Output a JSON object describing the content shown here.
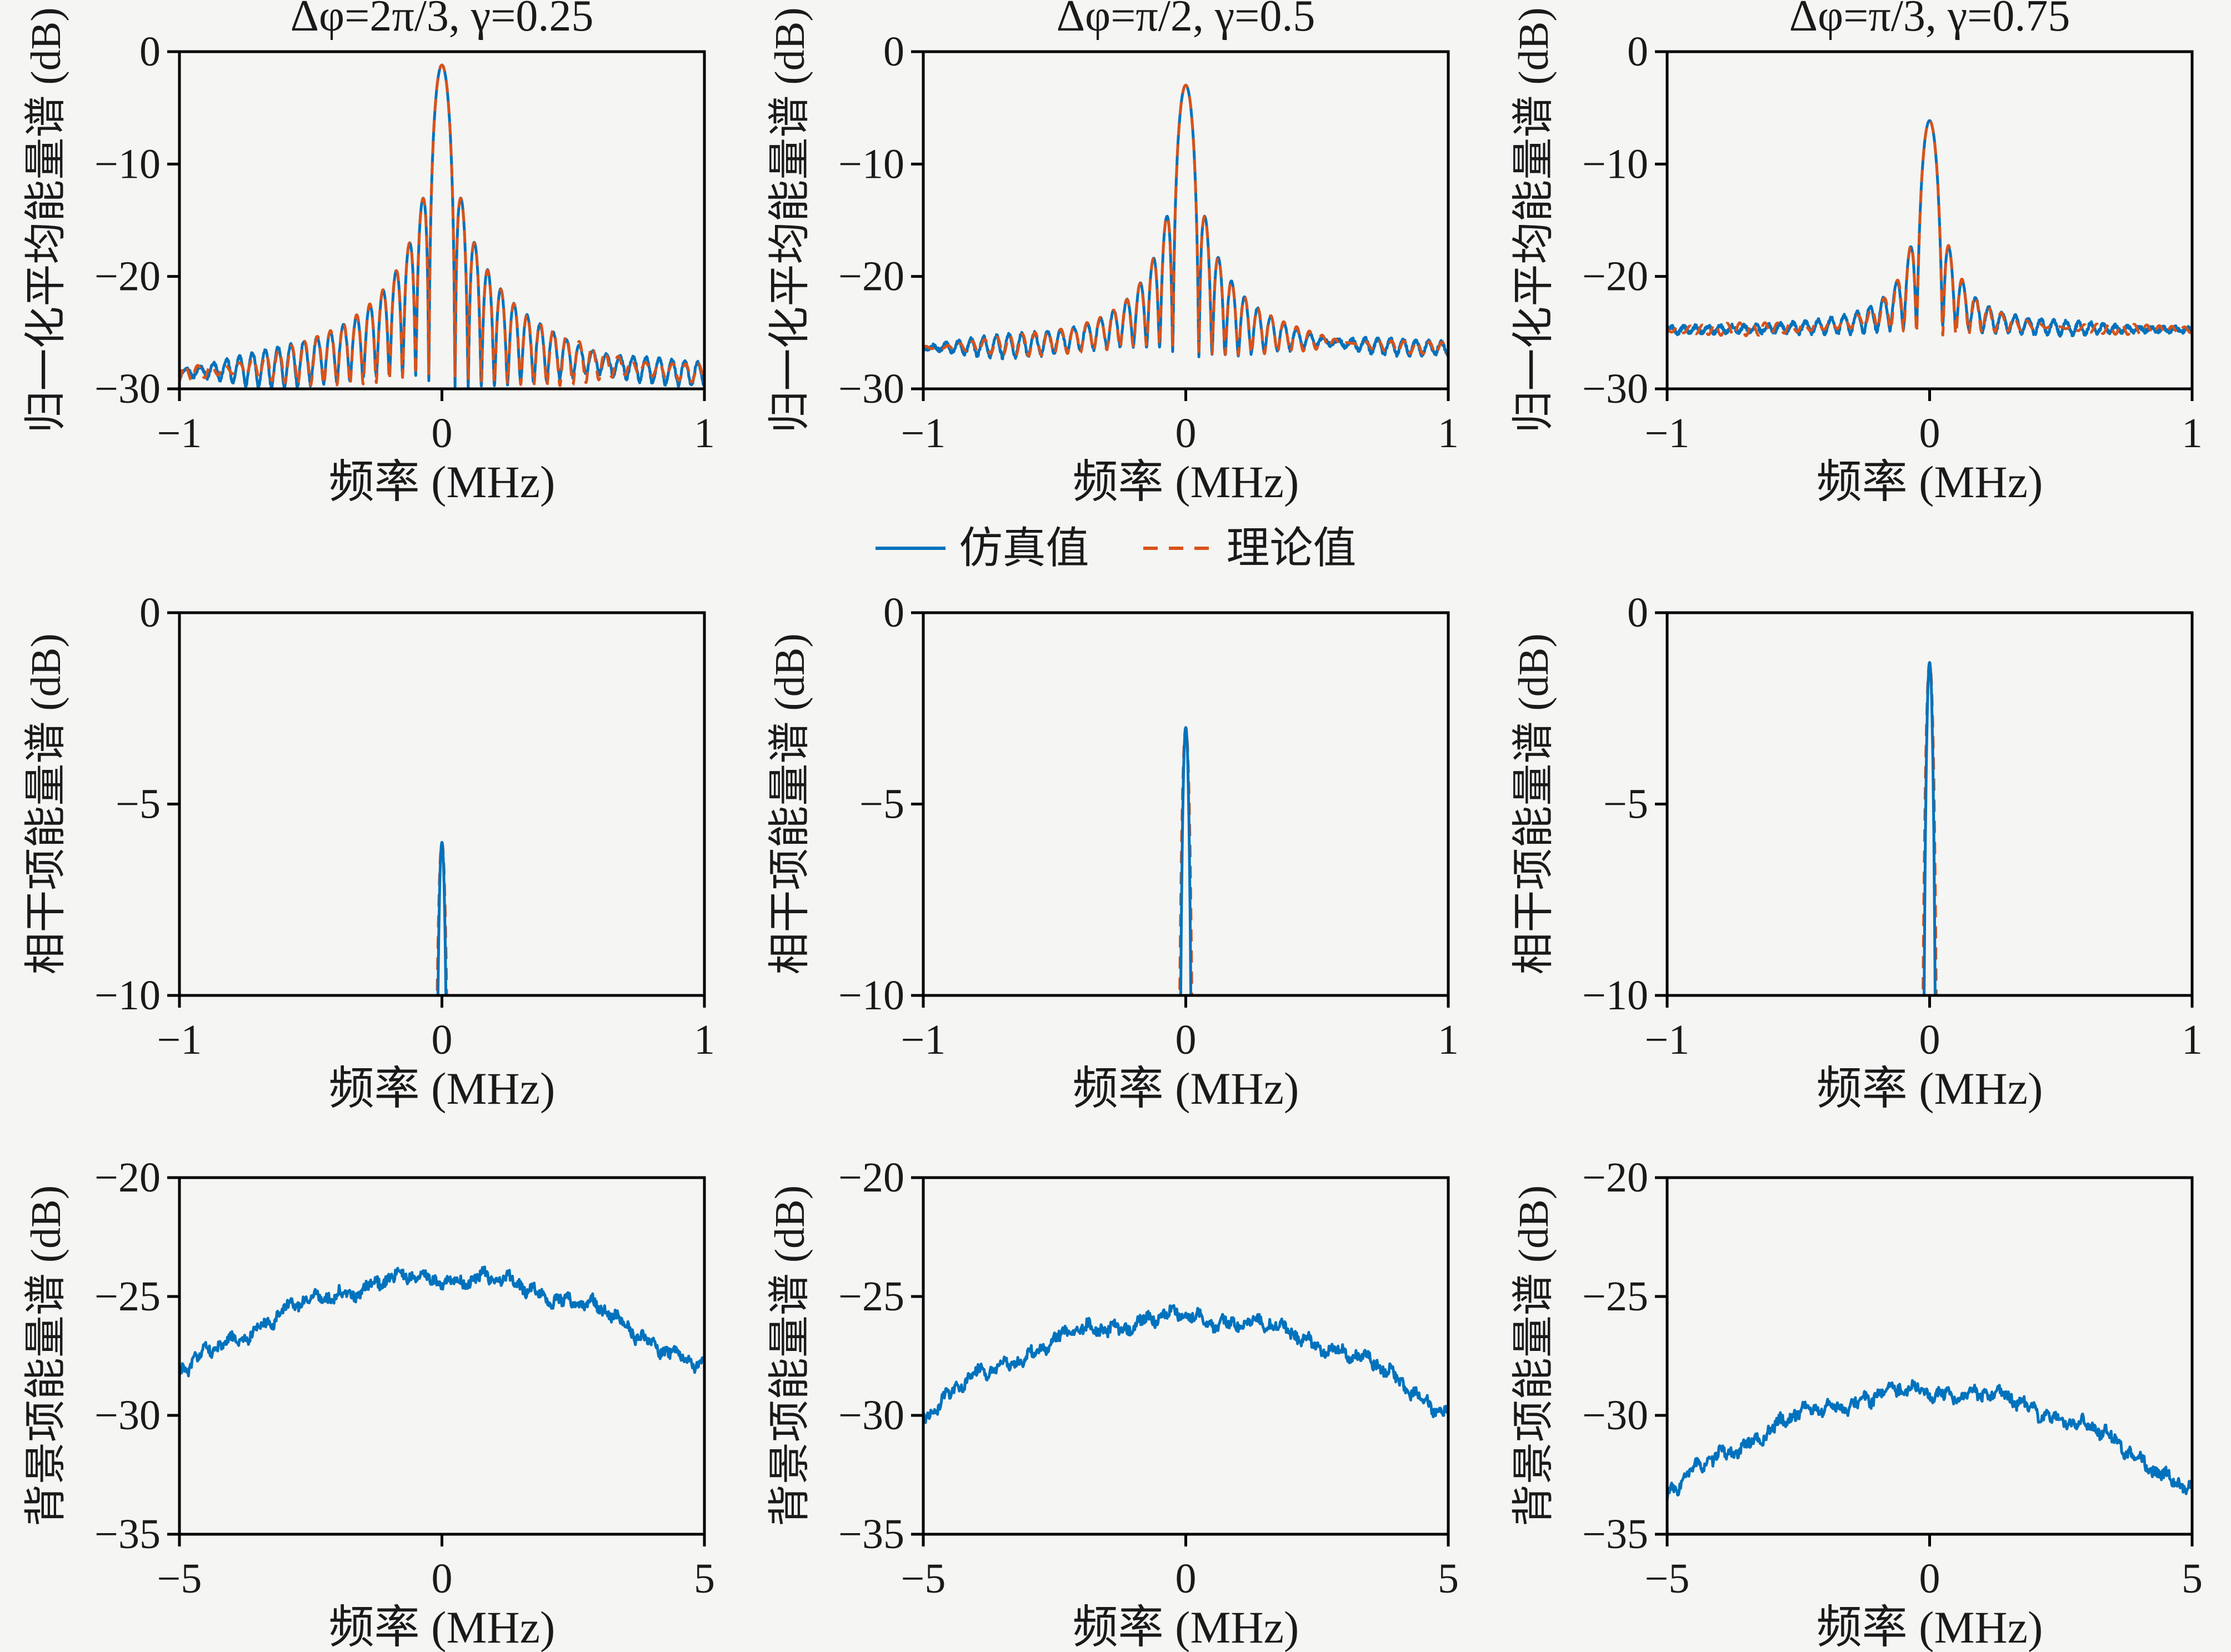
{
  "page": {
    "background": "#f5f5f3",
    "axes_color": "#000000",
    "text_color": "#1a1a1a"
  },
  "legend": {
    "position": "below-first-row-centered",
    "items": [
      {
        "label": "仿真值",
        "color": "#0072BD",
        "line_style": "solid"
      },
      {
        "label": "理论值",
        "color": "#D95319",
        "line_style": "dashed"
      }
    ]
  },
  "chart_data": [
    {
      "id": "avg-spectrum-c1",
      "type": "line",
      "grid": {
        "row": 0,
        "col": 0
      },
      "title": "Δφ=2π/3, γ=0.25",
      "xlabel": "频率 (MHz)",
      "ylabel": "归一化平均能量谱 (dB)",
      "xlim": [
        -1,
        1
      ],
      "ylim": [
        -30,
        0
      ],
      "xticks": [
        -1,
        0,
        1
      ],
      "yticks": [
        0,
        -10,
        -20,
        -30
      ],
      "grid_lines": false,
      "readings": {
        "main_peak_db": -1.2,
        "first_sidelobe_db": -14.5,
        "noise_floor_db": -29.0,
        "main_lobe_first_null_mhz": 0.05
      },
      "series": [
        {
          "name": "仿真值",
          "color": "#0072BD",
          "line_style": "solid",
          "model": {
            "kind": "sinc_spectrum",
            "peak_db": -1.2,
            "floor_db": -29.0,
            "first_null_mhz": 0.05,
            "decay": 18,
            "ripple_db": 0.7,
            "ripple_period_mhz": 0.047,
            "noise_db": 0.18,
            "seed": 11
          }
        },
        {
          "name": "理论值",
          "color": "#D95319",
          "line_style": "dashed",
          "model": {
            "kind": "sinc_spectrum",
            "peak_db": -1.2,
            "floor_db": -29.0,
            "first_null_mhz": 0.05,
            "decay": 18,
            "ripple_db": 0.7,
            "ripple_period_mhz": 0.047,
            "noise_db": 0,
            "seed": 12
          }
        }
      ]
    },
    {
      "id": "avg-spectrum-c2",
      "type": "line",
      "grid": {
        "row": 0,
        "col": 1
      },
      "title": "Δφ=π/2, γ=0.5",
      "xlabel": "频率 (MHz)",
      "ylabel": "归一化平均能量谱 (dB)",
      "xlim": [
        -1,
        1
      ],
      "ylim": [
        -30,
        0
      ],
      "xticks": [
        -1,
        0,
        1
      ],
      "yticks": [
        0,
        -10,
        -20,
        -30
      ],
      "grid_lines": false,
      "readings": {
        "main_peak_db": -3.0,
        "first_sidelobe_db": -16.1,
        "noise_floor_db": -26.3,
        "main_lobe_first_null_mhz": 0.05
      },
      "series": [
        {
          "name": "仿真值",
          "color": "#0072BD",
          "line_style": "solid",
          "model": {
            "kind": "sinc_spectrum",
            "peak_db": -3.0,
            "floor_db": -26.3,
            "first_null_mhz": 0.05,
            "decay": 18,
            "ripple_db": 0.6,
            "ripple_period_mhz": 0.047,
            "noise_db": 0.18,
            "seed": 13
          }
        },
        {
          "name": "理论值",
          "color": "#D95319",
          "line_style": "dashed",
          "model": {
            "kind": "sinc_spectrum",
            "peak_db": -3.0,
            "floor_db": -26.3,
            "first_null_mhz": 0.05,
            "decay": 18,
            "ripple_db": 0.6,
            "ripple_period_mhz": 0.047,
            "noise_db": 0,
            "seed": 14
          }
        }
      ]
    },
    {
      "id": "avg-spectrum-c3",
      "type": "line",
      "grid": {
        "row": 0,
        "col": 2
      },
      "title": "Δφ=π/3, γ=0.75",
      "xlabel": "频率 (MHz)",
      "ylabel": "归一化平均能量谱 (dB)",
      "xlim": [
        -1,
        1
      ],
      "ylim": [
        -30,
        0
      ],
      "xticks": [
        -1,
        0,
        1
      ],
      "yticks": [
        0,
        -10,
        -20,
        -30
      ],
      "grid_lines": false,
      "readings": {
        "main_peak_db": -6.2,
        "first_sidelobe_db": -18.2,
        "noise_floor_db": -24.5,
        "main_lobe_first_null_mhz": 0.05
      },
      "series": [
        {
          "name": "仿真值",
          "color": "#0072BD",
          "line_style": "solid",
          "model": {
            "kind": "sinc_spectrum",
            "peak_db": -6.2,
            "floor_db": -24.5,
            "first_null_mhz": 0.05,
            "decay": 18,
            "ripple_db": 0.45,
            "ripple_period_mhz": 0.047,
            "noise_db": 0.18,
            "seed": 15
          }
        },
        {
          "name": "理论值",
          "color": "#D95319",
          "line_style": "dashed",
          "model": {
            "kind": "sinc_spectrum",
            "peak_db": -6.2,
            "floor_db": -24.5,
            "first_null_mhz": 0.05,
            "decay": 18,
            "ripple_db": 0.45,
            "ripple_period_mhz": 0.047,
            "noise_db": 0,
            "seed": 16
          }
        }
      ]
    },
    {
      "id": "coherent-term-c1",
      "type": "line",
      "grid": {
        "row": 1,
        "col": 0
      },
      "title": "",
      "xlabel": "频率 (MHz)",
      "ylabel": "相干项能量谱 (dB)",
      "xlim": [
        -1,
        1
      ],
      "ylim": [
        -10,
        0
      ],
      "xticks": [
        -1,
        0,
        1
      ],
      "yticks": [
        0,
        -5,
        -10
      ],
      "grid_lines": false,
      "readings": {
        "peak_db": -6.0,
        "peak_frequency_mhz": 0,
        "spike_base_width_mhz": 0.06
      },
      "series": [
        {
          "name": "理论值",
          "color": "#D95319",
          "line_style": "dashed",
          "model": {
            "kind": "spike",
            "peak_db": -6.0,
            "first_null_mhz": 0.036,
            "seed": 21
          }
        },
        {
          "name": "仿真值",
          "color": "#0072BD",
          "line_style": "solid",
          "model": {
            "kind": "spike",
            "peak_db": -6.0,
            "first_null_mhz": 0.03,
            "seed": 22
          }
        }
      ]
    },
    {
      "id": "coherent-term-c2",
      "type": "line",
      "grid": {
        "row": 1,
        "col": 1
      },
      "title": "",
      "xlabel": "频率 (MHz)",
      "ylabel": "相干项能量谱 (dB)",
      "xlim": [
        -1,
        1
      ],
      "ylim": [
        -10,
        0
      ],
      "xticks": [
        -1,
        0,
        1
      ],
      "yticks": [
        0,
        -5,
        -10
      ],
      "grid_lines": false,
      "readings": {
        "peak_db": -3.0,
        "peak_frequency_mhz": 0,
        "spike_base_width_mhz": 0.06
      },
      "series": [
        {
          "name": "理论值",
          "color": "#D95319",
          "line_style": "dashed",
          "model": {
            "kind": "spike",
            "peak_db": -3.0,
            "first_null_mhz": 0.036,
            "seed": 23
          }
        },
        {
          "name": "仿真值",
          "color": "#0072BD",
          "line_style": "solid",
          "model": {
            "kind": "spike",
            "peak_db": -3.0,
            "first_null_mhz": 0.03,
            "seed": 24
          }
        }
      ]
    },
    {
      "id": "coherent-term-c3",
      "type": "line",
      "grid": {
        "row": 1,
        "col": 2
      },
      "title": "",
      "xlabel": "频率 (MHz)",
      "ylabel": "相干项能量谱 (dB)",
      "xlim": [
        -1,
        1
      ],
      "ylim": [
        -10,
        0
      ],
      "xticks": [
        -1,
        0,
        1
      ],
      "yticks": [
        0,
        -5,
        -10
      ],
      "grid_lines": false,
      "readings": {
        "peak_db": -1.3,
        "peak_frequency_mhz": 0,
        "spike_base_width_mhz": 0.06
      },
      "series": [
        {
          "name": "理论值",
          "color": "#D95319",
          "line_style": "dashed",
          "model": {
            "kind": "spike",
            "peak_db": -1.3,
            "first_null_mhz": 0.036,
            "seed": 25
          }
        },
        {
          "name": "仿真值",
          "color": "#0072BD",
          "line_style": "solid",
          "model": {
            "kind": "spike",
            "peak_db": -1.3,
            "first_null_mhz": 0.03,
            "seed": 26
          }
        }
      ]
    },
    {
      "id": "background-term-c1",
      "type": "line",
      "grid": {
        "row": 2,
        "col": 0
      },
      "title": "",
      "xlabel": "频率 (MHz)",
      "ylabel": "背景项能量谱 (dB)",
      "xlim": [
        -5,
        5
      ],
      "ylim": [
        -35,
        -20
      ],
      "xticks": [
        -5,
        0,
        5
      ],
      "yticks": [
        -20,
        -25,
        -30,
        -35
      ],
      "grid_lines": false,
      "readings": {
        "vertex_db": -24.2,
        "edge_db_at_±5mhz": -28.3
      },
      "series": [
        {
          "name": "仿真值",
          "color": "#0072BD",
          "line_style": "solid",
          "model": {
            "kind": "noisy_parabola",
            "vertex_db": -24.2,
            "curvature_db_per_mhz2": 0.164,
            "noise_db": 0.22,
            "seed": 31
          }
        }
      ]
    },
    {
      "id": "background-term-c2",
      "type": "line",
      "grid": {
        "row": 2,
        "col": 1
      },
      "title": "",
      "xlabel": "频率 (MHz)",
      "ylabel": "背景项能量谱 (dB)",
      "xlim": [
        -5,
        5
      ],
      "ylim": [
        -35,
        -20
      ],
      "xticks": [
        -5,
        0,
        5
      ],
      "yticks": [
        -20,
        -25,
        -30,
        -35
      ],
      "grid_lines": false,
      "readings": {
        "vertex_db": -25.9,
        "edge_db_at_±5mhz": -29.9
      },
      "series": [
        {
          "name": "仿真值",
          "color": "#0072BD",
          "line_style": "solid",
          "model": {
            "kind": "noisy_parabola",
            "vertex_db": -25.9,
            "curvature_db_per_mhz2": 0.16,
            "noise_db": 0.22,
            "seed": 32
          }
        }
      ]
    },
    {
      "id": "background-term-c3",
      "type": "line",
      "grid": {
        "row": 2,
        "col": 2
      },
      "title": "",
      "xlabel": "频率 (MHz)",
      "ylabel": "背景项能量谱 (dB)",
      "xlim": [
        -5,
        5
      ],
      "ylim": [
        -35,
        -20
      ],
      "xticks": [
        -5,
        0,
        5
      ],
      "yticks": [
        -20,
        -25,
        -30,
        -35
      ],
      "grid_lines": false,
      "readings": {
        "vertex_db": -29.0,
        "edge_db_at_±5mhz": -33.3
      },
      "series": [
        {
          "name": "仿真值",
          "color": "#0072BD",
          "line_style": "solid",
          "model": {
            "kind": "noisy_parabola",
            "vertex_db": -29.0,
            "curvature_db_per_mhz2": 0.172,
            "noise_db": 0.22,
            "seed": 33
          }
        }
      ]
    }
  ]
}
